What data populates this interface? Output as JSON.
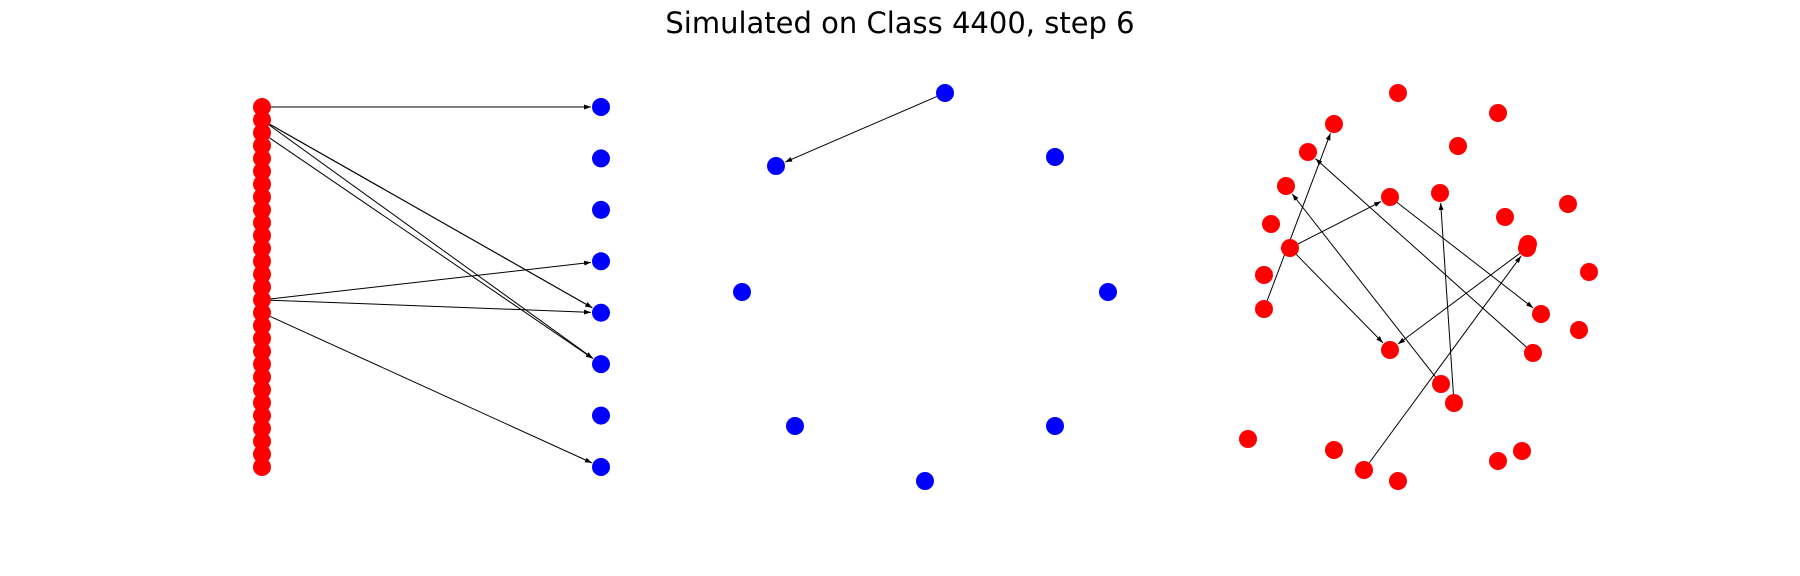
{
  "title": "Simulated on Class 4400, step 6",
  "colors": {
    "node_red": "#ff0000",
    "node_blue": "#0000ff",
    "edge": "#000000",
    "background": "#ffffff"
  },
  "panels": [
    {
      "name": "bipartite-graph-panel",
      "layout": "bipartite",
      "nodes": {
        "red_count": 29,
        "blue_count": 8
      },
      "edges": [
        {
          "from": "red-0",
          "to": "blue-0"
        },
        {
          "from": "red-1",
          "to": "blue-4"
        },
        {
          "from": "red-1",
          "to": "blue-4"
        },
        {
          "from": "red-2",
          "to": "blue-5"
        },
        {
          "from": "red-1",
          "to": "blue-5"
        },
        {
          "from": "red-15",
          "to": "blue-3"
        },
        {
          "from": "red-15",
          "to": "blue-4"
        },
        {
          "from": "red-16",
          "to": "blue-7"
        }
      ]
    },
    {
      "name": "blue-circle-graph-panel",
      "layout": "circle",
      "node_color": "blue",
      "node_count": 8,
      "edges": [
        {
          "from": "b-0",
          "to": "b-1"
        }
      ]
    },
    {
      "name": "red-circle-graph-panel",
      "layout": "circle",
      "node_color": "red",
      "node_count": 29,
      "edges": [
        {
          "from": "r-11",
          "to": "r-6"
        },
        {
          "from": "r-11",
          "to": "r-19"
        },
        {
          "from": "r-6",
          "to": "r-16"
        },
        {
          "from": "r-26",
          "to": "r-15"
        },
        {
          "from": "r-15",
          "to": "r-19"
        },
        {
          "from": "r-22",
          "to": "r-5"
        },
        {
          "from": "r-17",
          "to": "r-2"
        },
        {
          "from": "r-21",
          "to": "r-7"
        },
        {
          "from": "r-20",
          "to": "r-4"
        }
      ]
    }
  ]
}
